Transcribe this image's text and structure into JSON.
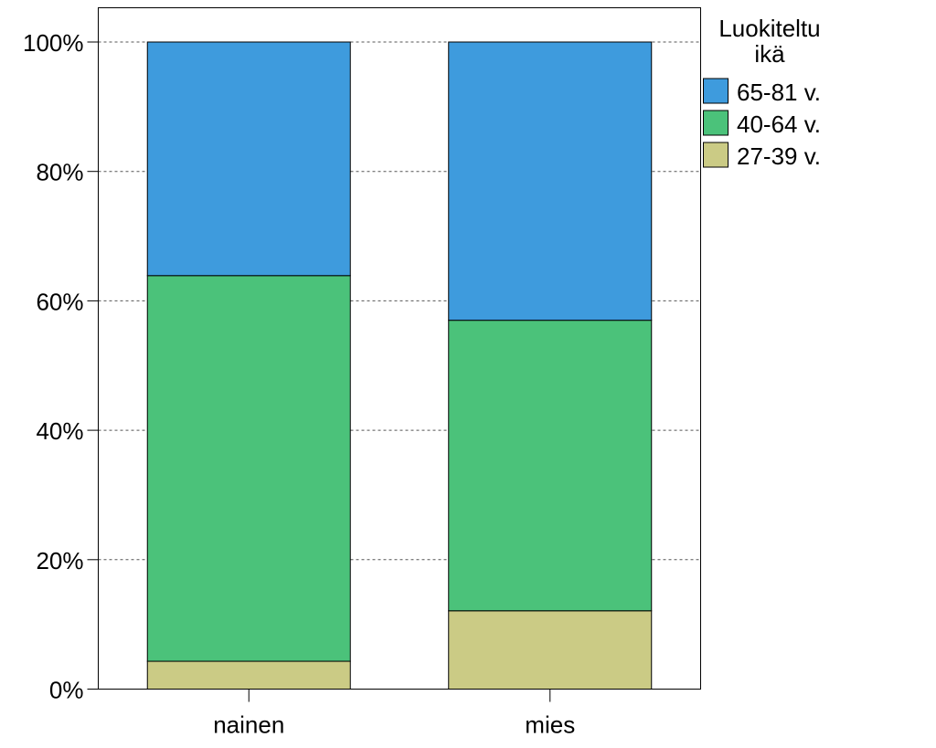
{
  "chart_data": {
    "type": "bar",
    "stacked": true,
    "normalized": true,
    "categories": [
      "nainen",
      "mies"
    ],
    "series": [
      {
        "name": "27-39 v.",
        "color": "#CBCB85",
        "values": [
          4.3,
          12.1
        ]
      },
      {
        "name": "40-64 v.",
        "color": "#4BC27A",
        "values": [
          59.6,
          44.9
        ]
      },
      {
        "name": "65-81 v.",
        "color": "#3E9BDD",
        "values": [
          36.1,
          43.0
        ]
      }
    ],
    "ylim": [
      0,
      100
    ],
    "yticks": [
      0,
      20,
      40,
      60,
      80,
      100
    ],
    "ytick_labels": [
      "0%",
      "20%",
      "40%",
      "60%",
      "80%",
      "100%"
    ],
    "grid": "horizontal dashed",
    "legend": {
      "title": [
        "Luokiteltu",
        "ikä"
      ],
      "placement": "top-right outside",
      "order": [
        "65-81 v.",
        "40-64 v.",
        "27-39 v."
      ]
    }
  }
}
